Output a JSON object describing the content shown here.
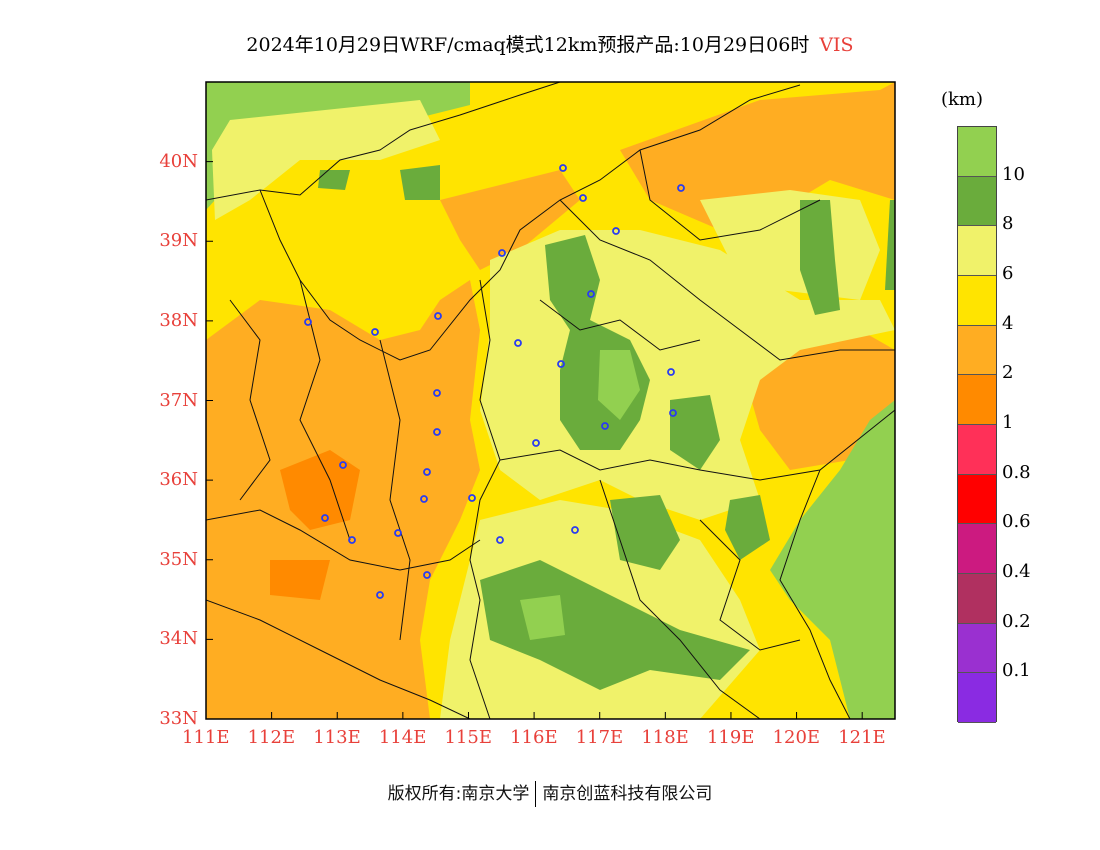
{
  "title": {
    "main": "2024年10月29日WRF/cmaq模式12km预报产品:10月29日06时",
    "variable": "VIS"
  },
  "colors": {
    "axis_label": "#e8403a",
    "boundary": "#111111",
    "city_marker": "#2a3cf0",
    "sea": "#92d050"
  },
  "map": {
    "lon_range": [
      111,
      121.5
    ],
    "lat_range": [
      33,
      41
    ],
    "lon_labels": [
      "111E",
      "112E",
      "113E",
      "114E",
      "115E",
      "116E",
      "117E",
      "118E",
      "119E",
      "120E",
      "121E"
    ],
    "lat_labels": [
      "33N",
      "34N",
      "35N",
      "36N",
      "37N",
      "38N",
      "39N",
      "40N"
    ]
  },
  "colorbar": {
    "unit": "(km)",
    "colors": [
      "#92d050",
      "#6aac3c",
      "#f0f26a",
      "#ffe400",
      "#ffad22",
      "#ff8a00",
      "#ff3058",
      "#ff0000",
      "#cc1a80",
      "#b03060",
      "#9a30d0",
      "#8a2be2"
    ],
    "labels": [
      "10",
      "8",
      "6",
      "4",
      "2",
      "1",
      "0.8",
      "0.6",
      "0.4",
      "0.2",
      "0.1"
    ]
  },
  "footer": {
    "copyright": "版权所有:南京大学",
    "company": "南京创蓝科技有限公司"
  }
}
